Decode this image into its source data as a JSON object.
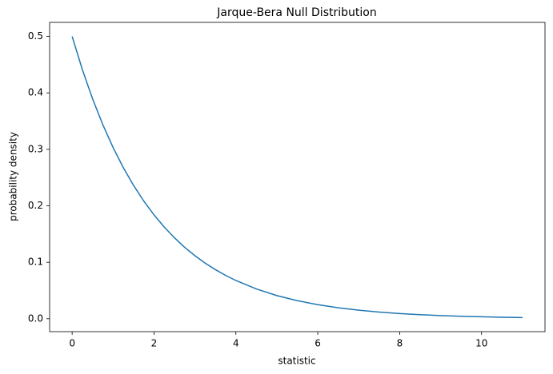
{
  "chart_data": {
    "type": "line",
    "title": "Jarque-Bera Null Distribution",
    "x_label": "statistic",
    "y_label": "probability density",
    "x": [
      0,
      0.25,
      0.5,
      0.75,
      1,
      1.25,
      1.5,
      1.75,
      2,
      2.25,
      2.5,
      2.75,
      3,
      3.25,
      3.5,
      3.75,
      4,
      4.5,
      5,
      5.5,
      6,
      6.5,
      7,
      7.5,
      8,
      8.5,
      9,
      9.5,
      10,
      10.5,
      11
    ],
    "series": [
      {
        "color": "#1f77b4",
        "values": [
          0.5,
          0.4412,
          0.3894,
          0.3436,
          0.3033,
          0.2676,
          0.2362,
          0.2084,
          0.1839,
          0.1623,
          0.1433,
          0.1264,
          0.1116,
          0.0985,
          0.0869,
          0.0767,
          0.0677,
          0.0527,
          0.041,
          0.032,
          0.0249,
          0.0194,
          0.0151,
          0.0118,
          0.0092,
          0.0071,
          0.0056,
          0.0043,
          0.0034,
          0.0026,
          0.002
        ]
      }
    ],
    "xlim": [
      -0.55,
      11.55
    ],
    "ylim": [
      -0.0229,
      0.5249
    ],
    "xticks": [
      0,
      2,
      4,
      6,
      8,
      10
    ],
    "yticks": [
      {
        "value": 0,
        "label": "0.0"
      },
      0.1,
      0.2,
      0.3,
      0.4,
      0.5
    ],
    "grid": false
  }
}
